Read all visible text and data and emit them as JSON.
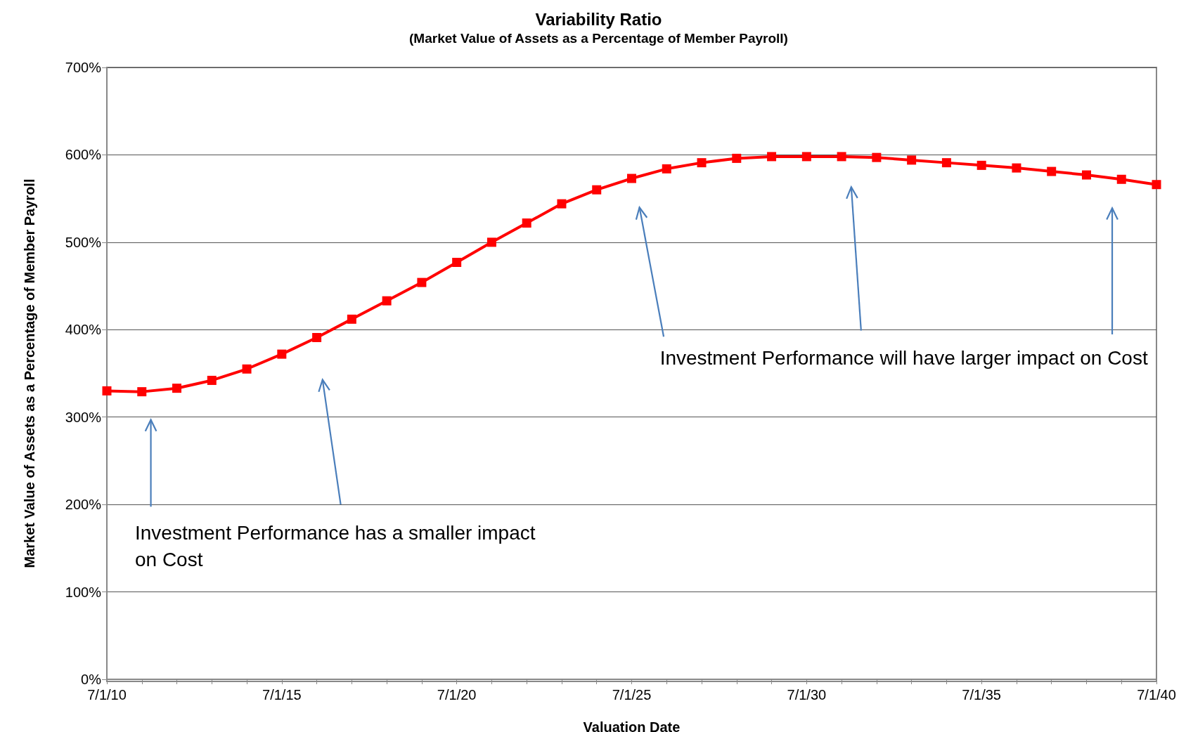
{
  "chart_data": {
    "type": "line",
    "title": "Variability Ratio",
    "subtitle": "(Market Value of Assets as a Percentage of Member Payroll)",
    "xlabel": "Valuation Date",
    "ylabel": "Market Value of Assets as a Percentage of Member Payroll",
    "categories": [
      "7/1/10",
      null,
      null,
      null,
      null,
      "7/1/15",
      null,
      null,
      null,
      null,
      "7/1/20",
      null,
      null,
      null,
      null,
      "7/1/25",
      null,
      null,
      null,
      null,
      "7/1/30",
      null,
      null,
      null,
      null,
      "7/1/35",
      null,
      null,
      null,
      null,
      "7/1/40"
    ],
    "series": [
      {
        "color": "#ff0000",
        "values": [
          330,
          329,
          333,
          342,
          355,
          372,
          391,
          412,
          433,
          454,
          477,
          500,
          522,
          544,
          560,
          573,
          584,
          591,
          596,
          598,
          598,
          598,
          597,
          594,
          591,
          588,
          585,
          581,
          577,
          572,
          566
        ]
      }
    ],
    "ylim": [
      0,
      700
    ],
    "yticks": [
      {
        "value": 0,
        "label": "0%"
      },
      {
        "value": 100,
        "label": "100%"
      },
      {
        "value": 200,
        "label": "200%"
      },
      {
        "value": 300,
        "label": "300%"
      },
      {
        "value": 400,
        "label": "400%"
      },
      {
        "value": 500,
        "label": "500%"
      },
      {
        "value": 600,
        "label": "600%"
      },
      {
        "value": 700,
        "label": "700%"
      }
    ],
    "grid": "y",
    "marker": "square",
    "line_style": "solid",
    "annotations": [
      "Investment Performance has a smaller impact on Cost",
      "Investment Performance will have larger impact on Cost"
    ]
  }
}
